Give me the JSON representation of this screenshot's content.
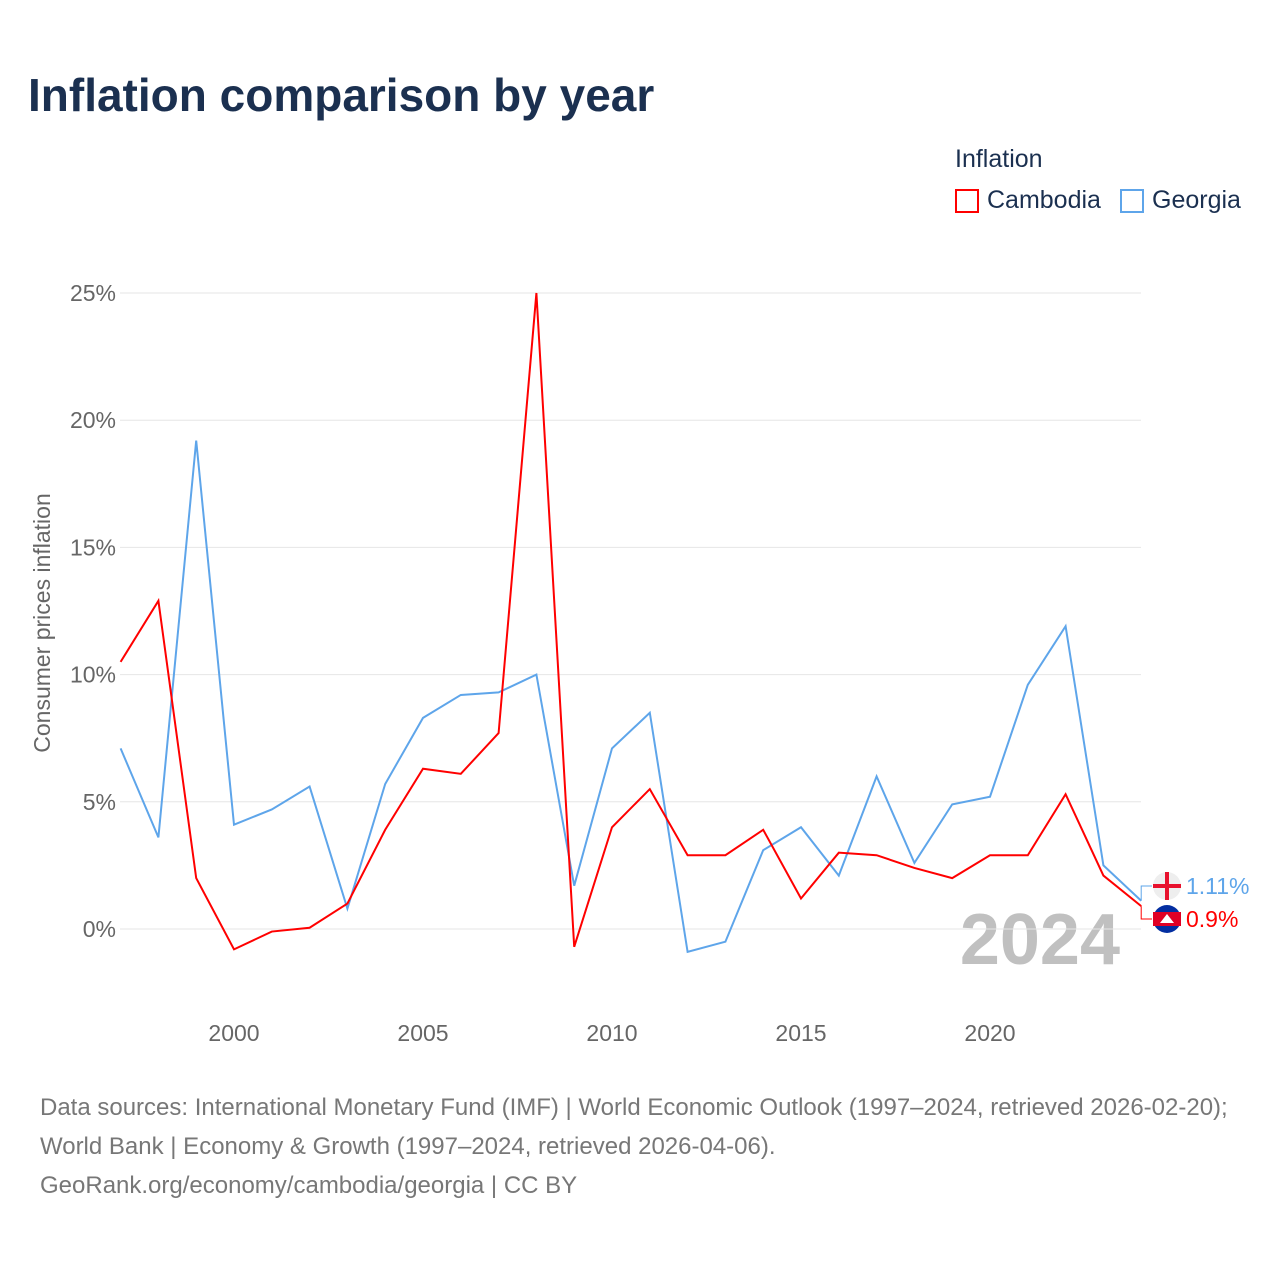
{
  "title": "Inflation comparison by year",
  "legend": {
    "title": "Inflation",
    "items": [
      "Cambodia",
      "Georgia"
    ]
  },
  "source": {
    "line1": "Data sources: International Monetary Fund (IMF) | World Economic Outlook (1997–2024, retrieved 2026-02-20); World Bank | Economy & Growth (1997–2024, retrieved 2026-04-06).",
    "line2": "GeoRank.org/economy/cambodia/georgia | CC BY"
  },
  "chart_data": {
    "type": "line",
    "title": "Inflation comparison by year",
    "ylabel": "Consumer prices inflation",
    "xlabel": "",
    "ylim": [
      -3,
      25
    ],
    "xlim": [
      1997,
      2024
    ],
    "yticks": [
      0,
      5,
      10,
      15,
      20,
      25
    ],
    "ytick_labels": [
      "0%",
      "5%",
      "10%",
      "15%",
      "20%",
      "25%"
    ],
    "xticks": [
      2000,
      2005,
      2010,
      2015,
      2020
    ],
    "xtick_labels": [
      "2000",
      "2005",
      "2010",
      "2015",
      "2020"
    ],
    "year_label": "2024",
    "x": [
      1997,
      1998,
      1999,
      2000,
      2001,
      2002,
      2003,
      2004,
      2005,
      2006,
      2007,
      2008,
      2009,
      2010,
      2011,
      2012,
      2013,
      2014,
      2015,
      2016,
      2017,
      2018,
      2019,
      2020,
      2021,
      2022,
      2023,
      2024
    ],
    "series": [
      {
        "name": "Cambodia",
        "color": "#ff0000",
        "end_label": "0.9%",
        "values": [
          10.5,
          12.9,
          2.0,
          -0.8,
          -0.1,
          0.05,
          1.0,
          3.9,
          6.3,
          6.1,
          7.7,
          25.0,
          -0.7,
          4.0,
          5.5,
          2.9,
          2.9,
          3.9,
          1.2,
          3.0,
          2.9,
          2.4,
          2.0,
          2.9,
          2.9,
          5.3,
          2.1,
          0.9
        ]
      },
      {
        "name": "Georgia",
        "color": "#5ea5ea",
        "end_label": "1.11%",
        "values": [
          7.1,
          3.6,
          19.2,
          4.1,
          4.7,
          5.6,
          0.8,
          5.7,
          8.3,
          9.2,
          9.3,
          10.0,
          1.7,
          7.1,
          8.5,
          -0.9,
          -0.5,
          3.1,
          4.0,
          2.1,
          6.0,
          2.6,
          4.9,
          5.2,
          9.6,
          11.9,
          2.5,
          1.11
        ]
      }
    ]
  }
}
